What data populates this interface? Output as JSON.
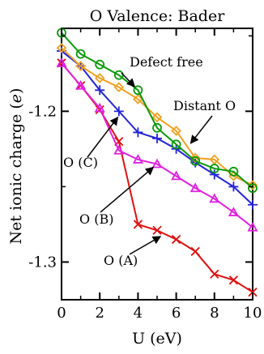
{
  "chart_data": {
    "type": "line",
    "title": "O Valence: Bader",
    "xlabel": "U (eV)",
    "ylabel": "Net ionic charge (e)",
    "ylabel_text": "Net ionic charge",
    "ylabel_unit": "e",
    "xlim": [
      0,
      10
    ],
    "ylim": [
      -1.325,
      -1.145
    ],
    "xticks": [
      0,
      2,
      4,
      6,
      8,
      10
    ],
    "xtick_labels": [
      "0",
      "2",
      "4",
      "6",
      "8",
      "10"
    ],
    "yticks": [
      -1.2,
      -1.3
    ],
    "ytick_labels": [
      "-1.2",
      "-1.3"
    ],
    "grid": false,
    "legend": "none",
    "x": [
      0,
      1,
      2,
      3,
      4,
      5,
      6,
      7,
      8,
      9,
      10
    ],
    "series": [
      {
        "name": "Defect free",
        "color": "#0a9a0a",
        "marker": "circle",
        "values": [
          -1.148,
          -1.162,
          -1.169,
          -1.176,
          -1.186,
          -1.211,
          -1.222,
          -1.233,
          -1.238,
          -1.24,
          -1.251
        ]
      },
      {
        "name": "Distant O",
        "color": "#f0a020",
        "marker": "diamond",
        "values": [
          -1.158,
          -1.17,
          -1.178,
          -1.184,
          -1.192,
          -1.204,
          -1.213,
          -1.231,
          -1.232,
          -1.243,
          -1.249
        ]
      },
      {
        "name": "O (C)",
        "color": "#2424d8",
        "marker": "plus",
        "values": [
          -1.16,
          -1.17,
          -1.186,
          -1.2,
          -1.214,
          -1.218,
          -1.225,
          -1.234,
          -1.242,
          -1.25,
          -1.262
        ]
      },
      {
        "name": "O (B)",
        "color": "#e020e0",
        "marker": "triangle",
        "values": [
          -1.168,
          -1.183,
          -1.198,
          -1.226,
          -1.232,
          -1.235,
          -1.243,
          -1.251,
          -1.258,
          -1.267,
          -1.277
        ]
      },
      {
        "name": "O (A)",
        "color": "#e01010",
        "marker": "x",
        "values": [
          -1.168,
          -1.183,
          -1.199,
          -1.22,
          -1.275,
          -1.279,
          -1.285,
          -1.293,
          -1.308,
          -1.312,
          -1.32
        ]
      }
    ],
    "annotations": [
      {
        "text": "Defect free",
        "target_series": 0,
        "target_x": 4.0
      },
      {
        "text": "Distant O",
        "target_series": 1,
        "target_x": 6.6
      },
      {
        "text": "O (C)",
        "target_series": 2,
        "target_x": 3.1
      },
      {
        "text": "O (B)",
        "target_series": 3,
        "target_x": 5.0
      },
      {
        "text": "O (A)",
        "target_series": 4,
        "target_x": 5.4
      }
    ]
  }
}
